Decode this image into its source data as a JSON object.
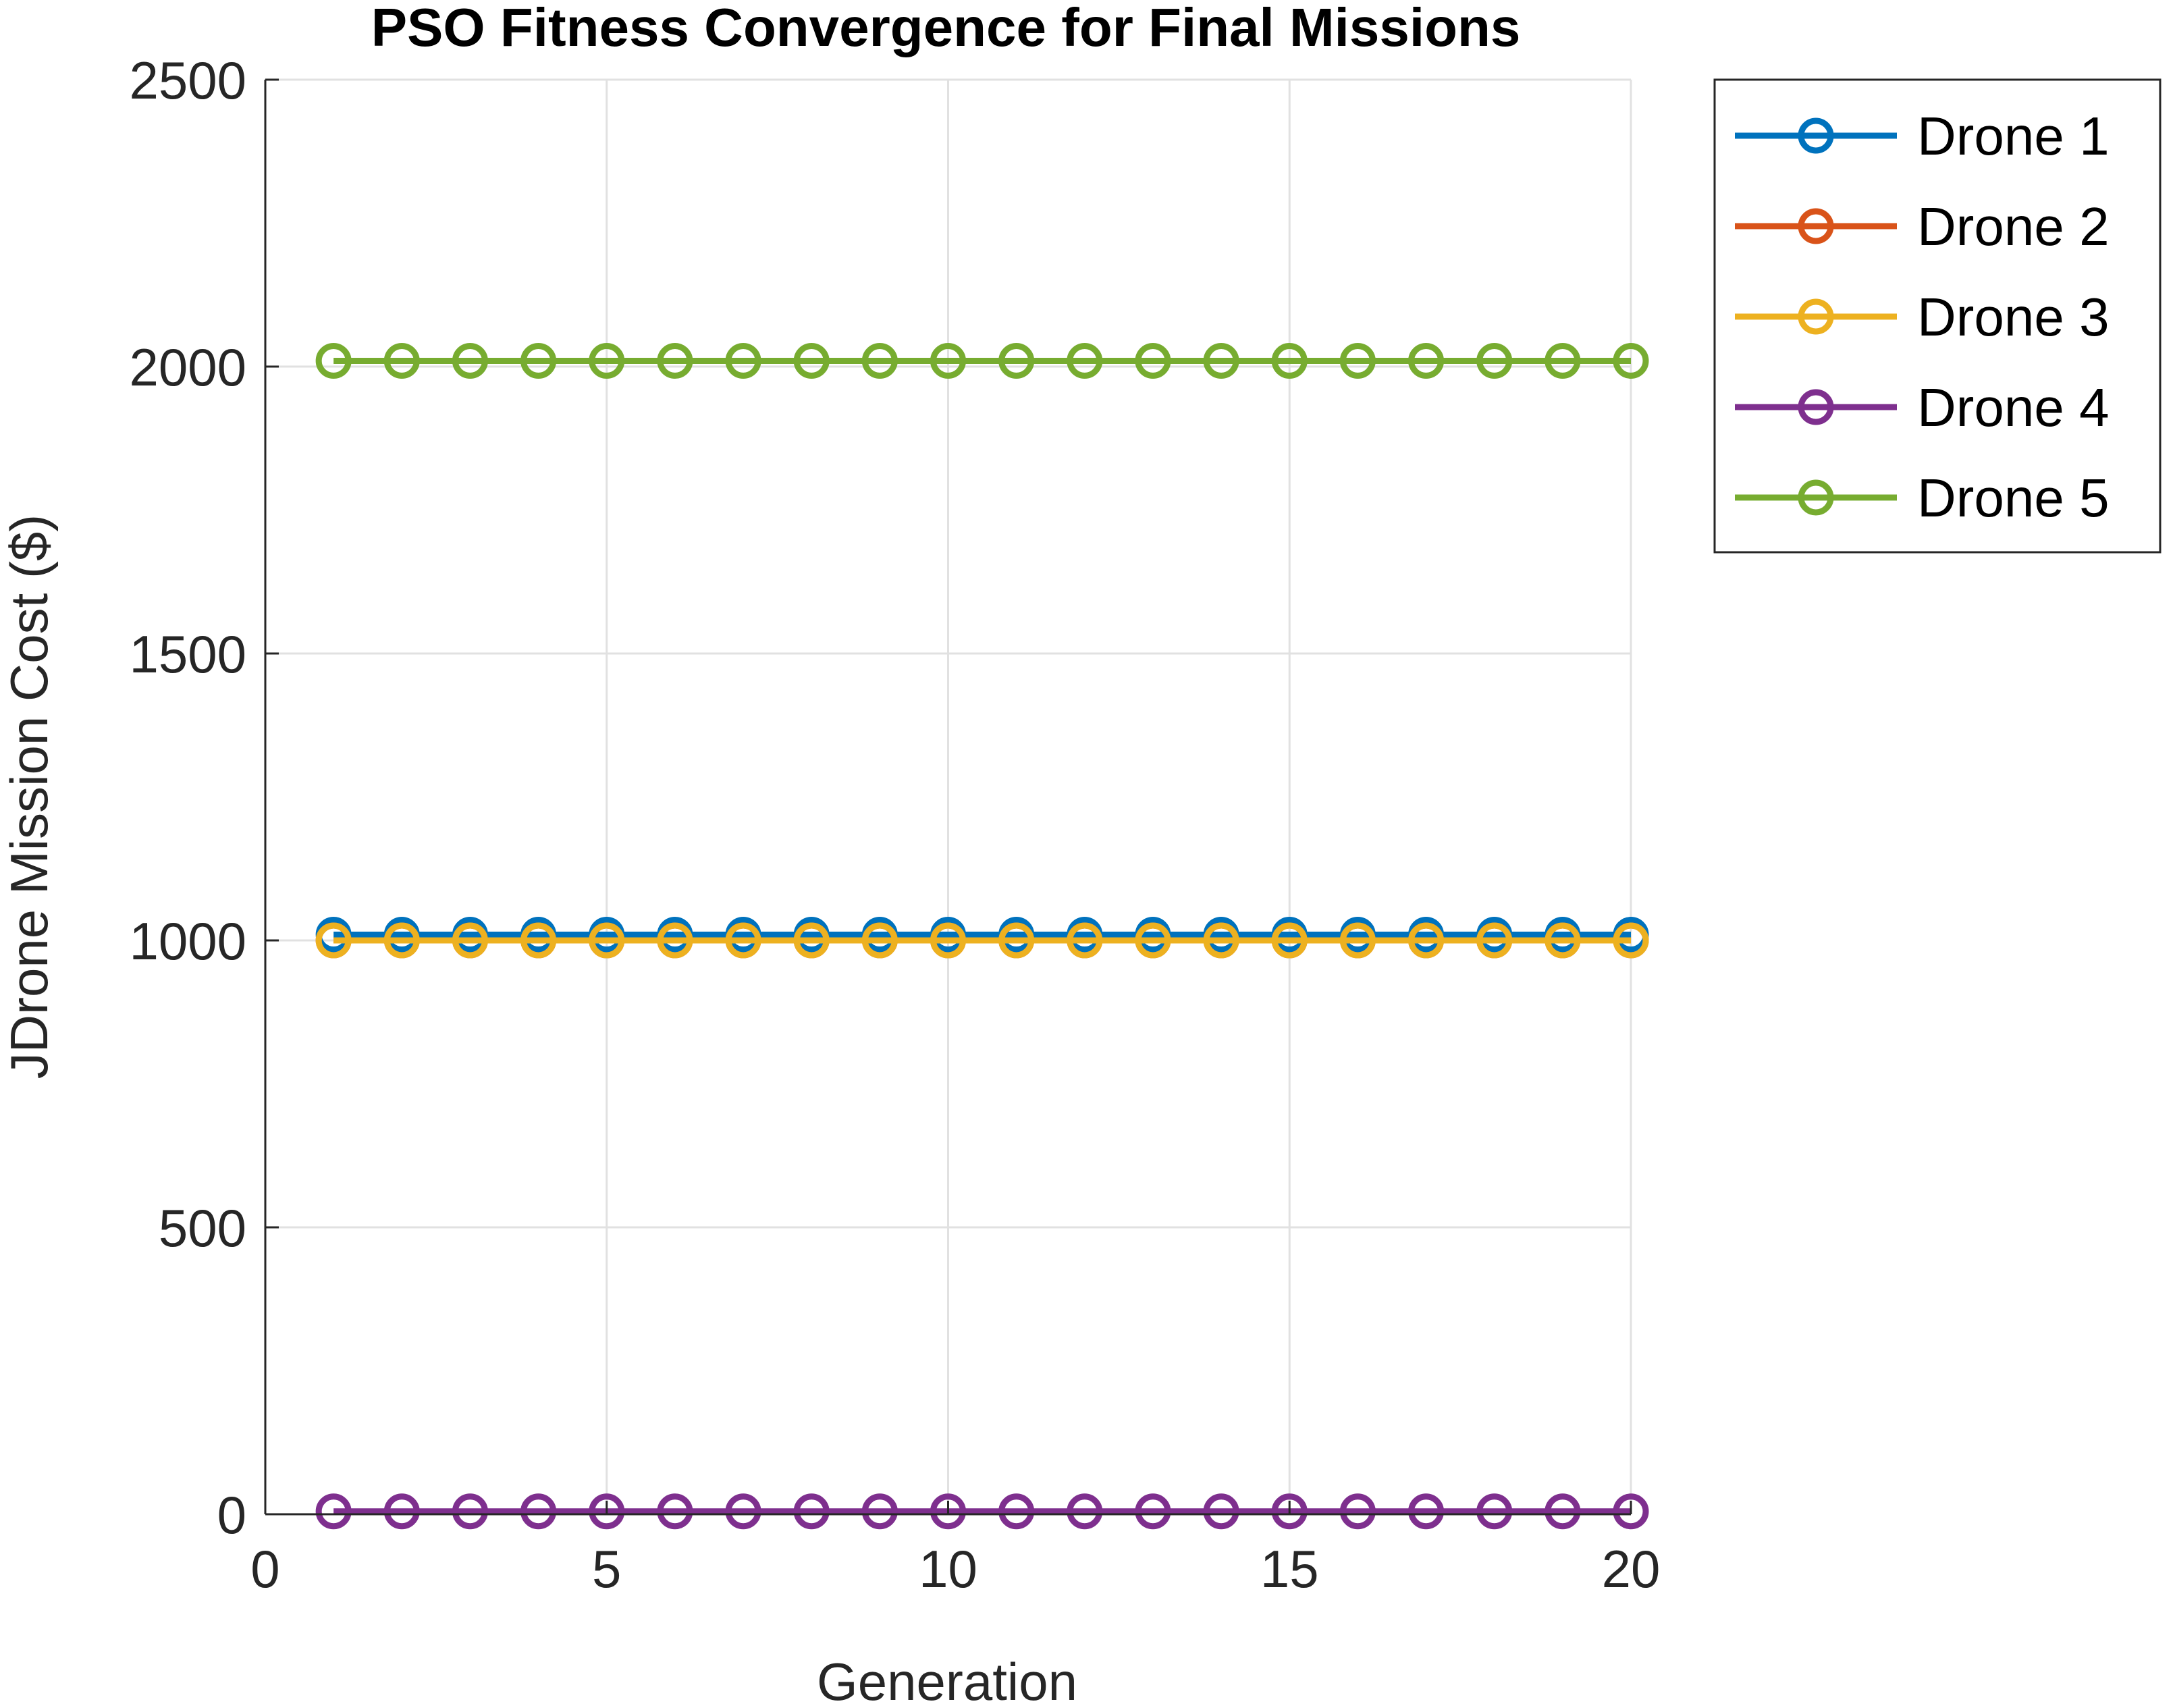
{
  "chart_data": {
    "type": "line",
    "title": "PSO Fitness Convergence for Final Missions",
    "xlabel": "Generation",
    "ylabel": "JDrone Mission Cost ($)",
    "xlim": [
      0,
      20
    ],
    "ylim": [
      0,
      2500
    ],
    "xticks": [
      0,
      5,
      10,
      15,
      20
    ],
    "yticks": [
      0,
      500,
      1000,
      1500,
      2000,
      2500
    ],
    "grid": true,
    "legend_position": "outside-top-right",
    "x": [
      1,
      2,
      3,
      4,
      5,
      6,
      7,
      8,
      9,
      10,
      11,
      12,
      13,
      14,
      15,
      16,
      17,
      18,
      19,
      20
    ],
    "series": [
      {
        "name": "Drone 1",
        "color": "#0072BD",
        "values": [
          1010,
          1010,
          1010,
          1010,
          1010,
          1010,
          1010,
          1010,
          1010,
          1010,
          1010,
          1010,
          1010,
          1010,
          1010,
          1010,
          1010,
          1010,
          1010,
          1010
        ]
      },
      {
        "name": "Drone 2",
        "color": "#D95319",
        "values": [
          1000,
          1000,
          1000,
          1000,
          1000,
          1000,
          1000,
          1000,
          1000,
          1000,
          1000,
          1000,
          1000,
          1000,
          1000,
          1000,
          1000,
          1000,
          1000,
          1000
        ]
      },
      {
        "name": "Drone 3",
        "color": "#EDB120",
        "values": [
          1000,
          1000,
          1000,
          1000,
          1000,
          1000,
          1000,
          1000,
          1000,
          1000,
          1000,
          1000,
          1000,
          1000,
          1000,
          1000,
          1000,
          1000,
          1000,
          1000
        ]
      },
      {
        "name": "Drone 4",
        "color": "#7E2F8E",
        "values": [
          5,
          5,
          5,
          5,
          5,
          5,
          5,
          5,
          5,
          5,
          5,
          5,
          5,
          5,
          5,
          5,
          5,
          5,
          5,
          5
        ]
      },
      {
        "name": "Drone 5",
        "color": "#77AC30",
        "values": [
          2010,
          2010,
          2010,
          2010,
          2010,
          2010,
          2010,
          2010,
          2010,
          2010,
          2010,
          2010,
          2010,
          2010,
          2010,
          2010,
          2010,
          2010,
          2010,
          2010
        ]
      }
    ]
  }
}
